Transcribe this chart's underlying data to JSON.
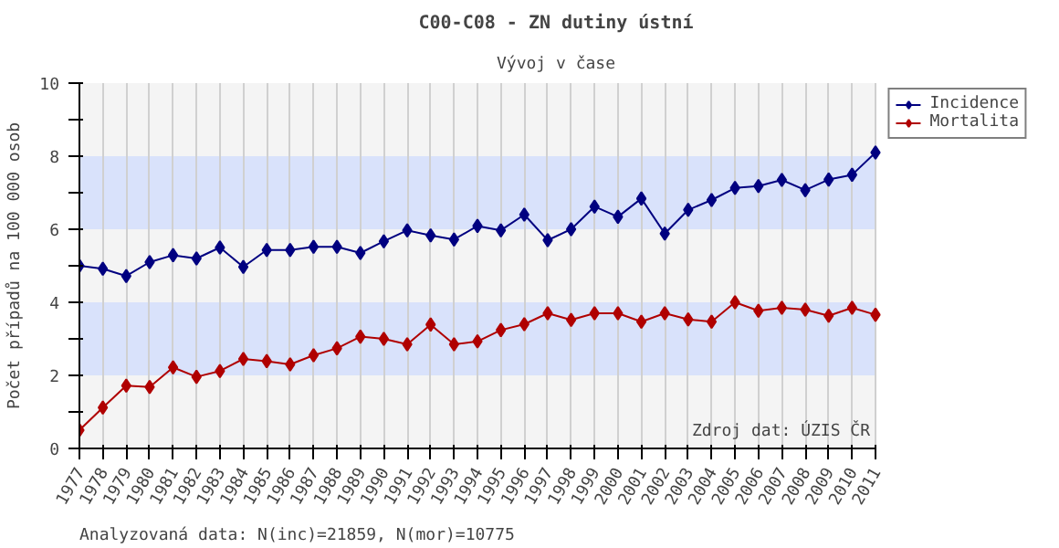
{
  "chart_data": {
    "type": "line",
    "title": "C00-C08 - ZN dutiny ústní",
    "subtitle": "Vývoj v čase",
    "ylabel": "Počet případů na 100 000 osob",
    "categories": [
      "1977",
      "1978",
      "1979",
      "1980",
      "1981",
      "1982",
      "1983",
      "1984",
      "1985",
      "1986",
      "1987",
      "1988",
      "1989",
      "1990",
      "1991",
      "1992",
      "1993",
      "1994",
      "1995",
      "1996",
      "1997",
      "1998",
      "1999",
      "2000",
      "2001",
      "2002",
      "2003",
      "2004",
      "2005",
      "2006",
      "2007",
      "2008",
      "2009",
      "2010",
      "2011"
    ],
    "series": [
      {
        "name": "Incidence",
        "color": "#000080",
        "values": [
          5.0,
          4.92,
          4.72,
          5.1,
          5.29,
          5.2,
          5.5,
          4.97,
          5.43,
          5.43,
          5.52,
          5.52,
          5.35,
          5.67,
          5.97,
          5.83,
          5.72,
          6.09,
          5.97,
          6.4,
          5.7,
          6.0,
          6.62,
          6.34,
          6.84,
          5.88,
          6.53,
          6.8,
          7.13,
          7.18,
          7.35,
          7.07,
          7.36,
          7.49,
          8.1
        ]
      },
      {
        "name": "Mortalita",
        "color": "#b00000",
        "values": [
          0.5,
          1.12,
          1.72,
          1.68,
          2.22,
          1.96,
          2.12,
          2.45,
          2.39,
          2.3,
          2.55,
          2.74,
          3.06,
          3.0,
          2.85,
          3.39,
          2.85,
          2.93,
          3.24,
          3.4,
          3.7,
          3.52,
          3.7,
          3.7,
          3.47,
          3.7,
          3.53,
          3.47,
          4.0,
          3.77,
          3.85,
          3.8,
          3.63,
          3.85,
          3.66
        ]
      }
    ],
    "ylim": [
      0,
      10
    ],
    "yticks": [
      0,
      {
        "value": 1,
        "label": null
      },
      2,
      {
        "value": 3,
        "label": null
      },
      4,
      {
        "value": 5,
        "label": null
      },
      6,
      {
        "value": 7,
        "label": null
      },
      8,
      {
        "value": 9,
        "label": null
      },
      10
    ],
    "bands": [
      {
        "axis": "y",
        "from": 0,
        "to": 2,
        "color": "#f4f4f4"
      },
      {
        "axis": "y",
        "from": 2,
        "to": 4,
        "color": "#d9e2fb"
      },
      {
        "axis": "y",
        "from": 4,
        "to": 6,
        "color": "#f4f4f4"
      },
      {
        "axis": "y",
        "from": 6,
        "to": 8,
        "color": "#d9e2fb"
      },
      {
        "axis": "y",
        "from": 8,
        "to": 10,
        "color": "#f4f4f4"
      }
    ],
    "grid": "x",
    "legend": "top right",
    "marker": "diamond",
    "line_style": "solid",
    "annotations": [
      "Zdroj dat: ÚZIS ČR",
      "Analyzovaná data: N(inc)=21859, N(mor)=10775"
    ]
  }
}
